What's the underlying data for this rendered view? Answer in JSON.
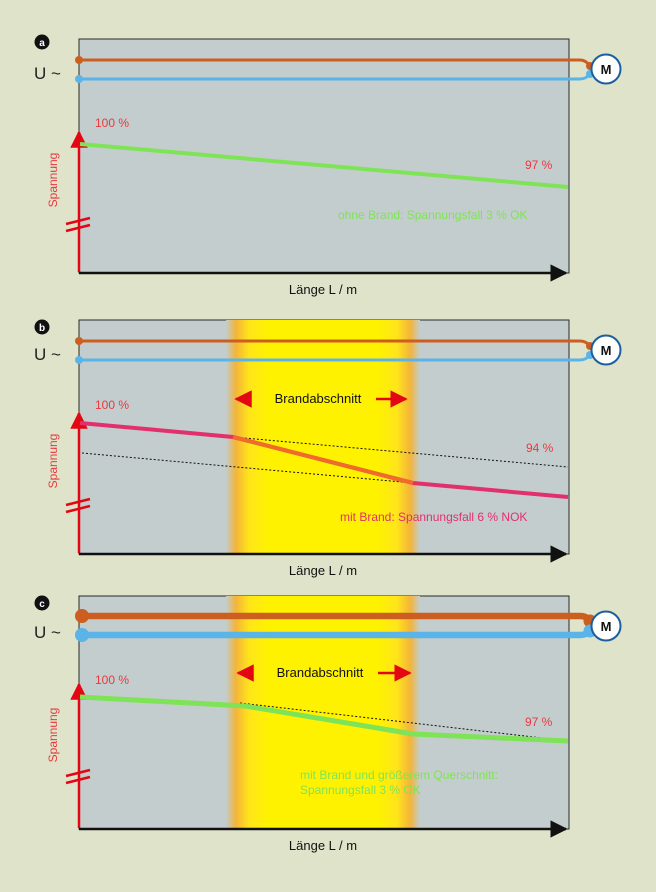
{
  "colors": {
    "background": "#dfe3c9",
    "plot_fill": "#c3cdcd",
    "fire_yellow": "#fff200",
    "fire_orange": "#f0a020",
    "line_orange": "#cc5e1f",
    "line_blue": "#5ab4e8",
    "voltage_ok": "#7fe357",
    "voltage_nok": "#e1306c",
    "axis": "#111111",
    "axis_arrow": "#e30613",
    "label_red": "#e73a3f"
  },
  "icons": {
    "motor": "motor-circle-icon",
    "axis_break": "axis-break-icon",
    "range_arrows": "double-arrow-icon"
  },
  "panels": [
    {
      "badge": "a",
      "supply_label": "U ~",
      "motor_label": "M",
      "y_axis_label": "Spannung",
      "x_axis_label": "Länge L / m",
      "start_label": "100 %",
      "end_label": "97 %",
      "fire_zone": "",
      "caption_lines": [
        "ohne Brand: Spannungsfall 3 % OK"
      ]
    },
    {
      "badge": "b",
      "supply_label": "U ~",
      "motor_label": "M",
      "y_axis_label": "Spannung",
      "x_axis_label": "Länge L / m",
      "start_label": "100 %",
      "end_label": "94 %",
      "fire_zone": "Brandabschnitt",
      "caption_lines": [
        "mit Brand: Spannungsfall 6 % NOK"
      ]
    },
    {
      "badge": "c",
      "supply_label": "U ~",
      "motor_label": "M",
      "y_axis_label": "Spannung",
      "x_axis_label": "Länge L / m",
      "start_label": "100 %",
      "end_label": "97 %",
      "fire_zone": "Brandabschnitt",
      "caption_lines": [
        "mit Brand und größerem Querschnitt:",
        "Spannungsfall 3 % OK"
      ]
    }
  ]
}
